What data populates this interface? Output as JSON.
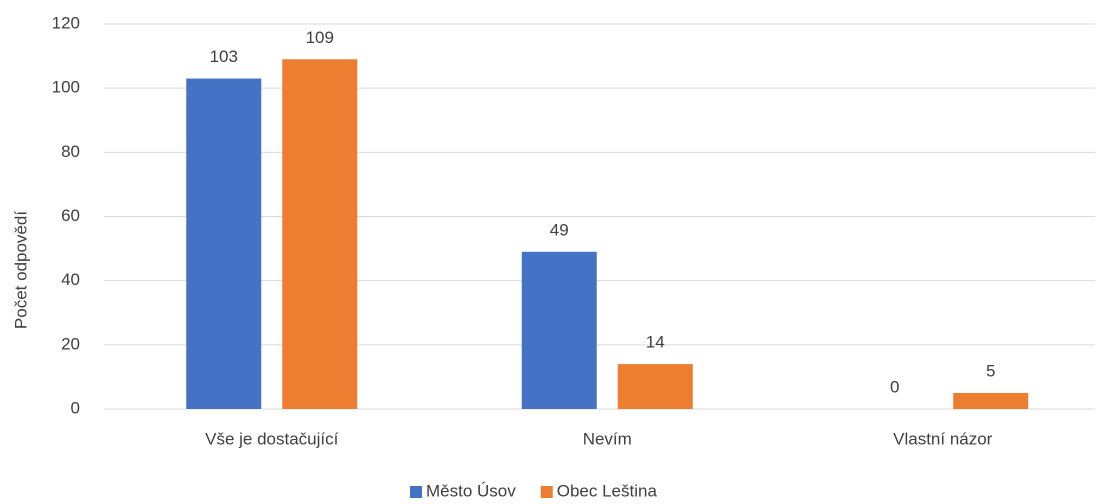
{
  "chart_data": {
    "type": "bar",
    "y_label": "Počet odpovědí",
    "categories": [
      "Vše je dostačující",
      "Nevím",
      "Vlastní názor"
    ],
    "series": [
      {
        "name": "Město Úsov",
        "color": "#4472c4",
        "values": [
          103,
          49,
          0
        ]
      },
      {
        "name": "Obec Leština",
        "color": "#ed7d31",
        "values": [
          109,
          14,
          5
        ]
      }
    ],
    "ylim": [
      0,
      120
    ],
    "yticks": [
      0,
      20,
      40,
      60,
      80,
      100,
      120
    ],
    "grid": true,
    "legend": "bottom"
  }
}
